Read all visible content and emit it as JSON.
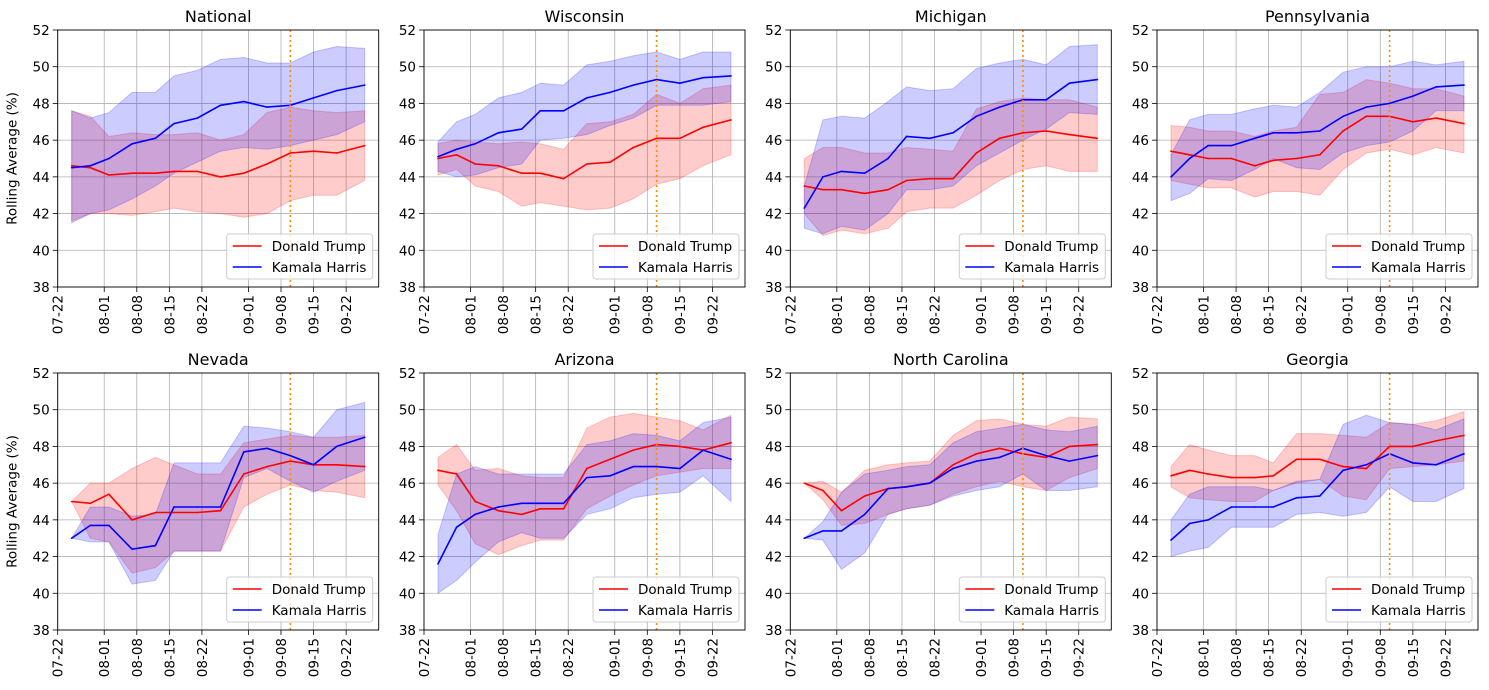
{
  "chart_data": {
    "type": "line",
    "ylabel": "Rolling Average (%)",
    "ylim": [
      38,
      52
    ],
    "yticks": [
      "38",
      "40",
      "42",
      "44",
      "46",
      "48",
      "50",
      "52"
    ],
    "xlim": [
      "07-22",
      "09-29"
    ],
    "xticks": [
      "07-22",
      "08-01",
      "08-08",
      "08-15",
      "08-22",
      "09-01",
      "09-08",
      "09-15",
      "09-22"
    ],
    "grid": true,
    "legend_placement": "lower-right",
    "band": "shaded range around each series",
    "vline": {
      "x": "09-10",
      "color": "#ff8c00",
      "style": "dotted"
    },
    "series_styles": [
      {
        "key": "trump",
        "name": "Donald Trump",
        "color": "#ff0000"
      },
      {
        "key": "harris",
        "name": "Kamala Harris",
        "color": "#0000ff"
      }
    ],
    "x": [
      "07-25",
      "07-29",
      "08-02",
      "08-07",
      "08-12",
      "08-16",
      "08-21",
      "08-26",
      "08-31",
      "09-05",
      "09-10",
      "09-15",
      "09-20",
      "09-26"
    ],
    "panels": [
      {
        "title": "National",
        "trump": {
          "mean": [
            44.6,
            44.5,
            44.1,
            44.2,
            44.2,
            44.3,
            44.3,
            44.0,
            44.2,
            44.7,
            45.3,
            45.4,
            45.3,
            45.7
          ],
          "low": [
            41.6,
            42.0,
            42.0,
            41.9,
            42.1,
            42.3,
            42.1,
            42.0,
            41.8,
            42.0,
            42.7,
            43.0,
            43.0,
            43.8
          ],
          "high": [
            47.6,
            47.3,
            46.2,
            46.4,
            46.3,
            46.3,
            46.4,
            46.0,
            46.3,
            47.5,
            47.8,
            47.6,
            47.5,
            47.6
          ]
        },
        "harris": {
          "mean": [
            44.5,
            44.6,
            45.0,
            45.8,
            46.1,
            46.9,
            47.2,
            47.9,
            48.1,
            47.8,
            47.9,
            48.3,
            48.7,
            49.0
          ],
          "low": [
            41.5,
            42.0,
            42.2,
            42.8,
            43.5,
            44.2,
            44.8,
            45.4,
            45.6,
            45.5,
            45.7,
            46.0,
            46.3,
            47.0
          ],
          "high": [
            47.6,
            47.2,
            47.5,
            48.6,
            48.6,
            49.5,
            49.8,
            50.4,
            50.5,
            50.2,
            50.2,
            50.8,
            51.1,
            51.0
          ]
        }
      },
      {
        "title": "Wisconsin",
        "trump": {
          "mean": [
            45.0,
            45.2,
            44.7,
            44.6,
            44.2,
            44.2,
            43.9,
            44.7,
            44.8,
            45.6,
            46.1,
            46.1,
            46.7,
            47.1
          ],
          "low": [
            44.1,
            44.4,
            43.5,
            43.2,
            42.4,
            42.6,
            42.4,
            42.2,
            42.3,
            42.8,
            43.6,
            43.9,
            44.6,
            45.2
          ],
          "high": [
            45.8,
            46.0,
            45.9,
            45.8,
            45.9,
            45.8,
            45.5,
            46.9,
            47.0,
            47.4,
            48.5,
            48.0,
            48.8,
            49.0
          ]
        },
        "harris": {
          "mean": [
            45.1,
            45.5,
            45.8,
            46.4,
            46.6,
            47.6,
            47.6,
            48.3,
            48.6,
            49.0,
            49.3,
            49.1,
            49.4,
            49.5
          ],
          "low": [
            44.3,
            44.0,
            44.1,
            44.5,
            44.7,
            46.0,
            46.1,
            46.3,
            46.8,
            47.2,
            47.9,
            47.9,
            47.9,
            48.1
          ],
          "high": [
            45.9,
            47.0,
            47.4,
            48.3,
            48.6,
            49.1,
            49.0,
            50.1,
            50.3,
            50.6,
            50.8,
            50.4,
            50.8,
            50.8
          ]
        }
      },
      {
        "title": "Michigan",
        "trump": {
          "mean": [
            43.5,
            43.3,
            43.3,
            43.1,
            43.3,
            43.8,
            43.9,
            43.9,
            45.3,
            46.1,
            46.4,
            46.5,
            46.3,
            46.1
          ],
          "low": [
            42.0,
            40.8,
            41.1,
            40.9,
            41.2,
            42.1,
            42.3,
            42.3,
            43.0,
            43.8,
            44.4,
            44.6,
            44.3,
            44.3
          ],
          "high": [
            45.0,
            45.6,
            45.6,
            45.3,
            45.3,
            45.6,
            45.5,
            45.4,
            47.7,
            48.1,
            48.3,
            48.2,
            48.2,
            47.8
          ]
        },
        "harris": {
          "mean": [
            42.3,
            44.0,
            44.3,
            44.2,
            45.0,
            46.2,
            46.1,
            46.4,
            47.3,
            47.8,
            48.2,
            48.2,
            49.1,
            49.3
          ],
          "low": [
            41.2,
            40.9,
            41.3,
            41.1,
            42.0,
            43.3,
            43.3,
            43.5,
            44.6,
            45.3,
            46.0,
            46.6,
            47.5,
            47.4
          ],
          "high": [
            43.5,
            47.1,
            47.3,
            47.2,
            48.1,
            48.9,
            48.7,
            48.8,
            49.9,
            50.2,
            50.4,
            50.1,
            51.1,
            51.2
          ]
        }
      },
      {
        "title": "Pennsylvania",
        "trump": {
          "mean": [
            45.4,
            45.2,
            45.0,
            45.0,
            44.6,
            44.9,
            45.0,
            45.2,
            46.5,
            47.3,
            47.3,
            47.0,
            47.2,
            46.9
          ],
          "low": [
            43.8,
            43.6,
            43.4,
            43.4,
            42.9,
            43.2,
            43.2,
            43.0,
            44.4,
            45.3,
            45.5,
            45.2,
            45.6,
            45.3
          ],
          "high": [
            46.8,
            46.7,
            46.5,
            46.5,
            46.2,
            46.5,
            46.7,
            48.5,
            48.6,
            49.3,
            49.1,
            48.8,
            48.8,
            48.4
          ]
        },
        "harris": {
          "mean": [
            44.0,
            45.0,
            45.7,
            45.7,
            46.1,
            46.4,
            46.4,
            46.5,
            47.3,
            47.8,
            48.0,
            48.4,
            48.9,
            49.0
          ],
          "low": [
            42.7,
            43.1,
            43.9,
            43.8,
            44.4,
            45.0,
            44.5,
            44.4,
            45.3,
            45.7,
            45.9,
            46.5,
            47.6,
            47.6
          ],
          "high": [
            45.2,
            47.1,
            47.4,
            47.4,
            47.7,
            47.9,
            47.8,
            48.6,
            49.7,
            50.0,
            50.0,
            50.3,
            50.1,
            50.3
          ]
        }
      },
      {
        "title": "Nevada",
        "trump": {
          "mean": [
            45.0,
            44.9,
            45.4,
            44.0,
            44.4,
            44.4,
            44.4,
            44.5,
            46.5,
            46.9,
            47.2,
            47.0,
            47.0,
            46.9
          ],
          "low": [
            45.0,
            43.0,
            42.8,
            41.1,
            41.4,
            42.3,
            42.3,
            42.3,
            44.7,
            45.4,
            45.9,
            45.6,
            45.5,
            45.2
          ],
          "high": [
            45.0,
            46.0,
            46.0,
            46.8,
            47.4,
            47.0,
            46.5,
            46.5,
            48.2,
            48.4,
            48.6,
            48.5,
            48.5,
            48.6
          ]
        },
        "harris": {
          "mean": [
            43.0,
            43.7,
            43.7,
            42.4,
            42.6,
            44.7,
            44.7,
            44.7,
            47.7,
            47.9,
            47.5,
            47.0,
            48.0,
            48.5
          ],
          "low": [
            43.0,
            42.8,
            42.8,
            40.5,
            40.7,
            42.3,
            42.3,
            42.3,
            46.3,
            46.8,
            46.1,
            45.5,
            46.1,
            46.7
          ],
          "high": [
            43.0,
            44.7,
            44.7,
            44.2,
            44.3,
            47.1,
            47.1,
            47.1,
            49.1,
            49.0,
            48.8,
            48.5,
            50.0,
            50.4
          ]
        }
      },
      {
        "title": "Arizona",
        "trump": {
          "mean": [
            46.7,
            46.5,
            45.0,
            44.5,
            44.3,
            44.6,
            44.6,
            46.8,
            47.3,
            47.8,
            48.1,
            48.0,
            47.8,
            48.2
          ],
          "low": [
            45.9,
            44.5,
            42.7,
            42.1,
            42.6,
            42.9,
            42.9,
            44.6,
            45.3,
            45.9,
            46.4,
            46.6,
            46.8,
            46.8
          ],
          "high": [
            47.4,
            48.1,
            46.7,
            46.8,
            46.4,
            46.3,
            46.3,
            49.0,
            49.6,
            49.8,
            49.6,
            49.4,
            48.9,
            49.7
          ]
        },
        "harris": {
          "mean": [
            41.6,
            43.6,
            44.3,
            44.7,
            44.9,
            44.9,
            44.9,
            46.3,
            46.4,
            46.9,
            46.9,
            46.8,
            47.8,
            47.3
          ],
          "low": [
            40.0,
            40.7,
            41.7,
            42.8,
            43.3,
            43.0,
            43.0,
            44.3,
            44.6,
            45.2,
            45.4,
            45.5,
            46.4,
            45.0
          ],
          "high": [
            43.2,
            46.5,
            46.9,
            46.5,
            46.5,
            46.5,
            46.5,
            48.1,
            48.3,
            48.7,
            48.6,
            48.3,
            49.3,
            49.6
          ]
        }
      },
      {
        "title": "North Carolina",
        "trump": {
          "mean": [
            46.0,
            45.6,
            44.5,
            45.3,
            45.7,
            45.8,
            46.0,
            47.0,
            47.6,
            47.9,
            47.6,
            47.4,
            48.0,
            48.1
          ],
          "low": [
            46.0,
            45.1,
            43.7,
            43.8,
            44.3,
            44.6,
            44.8,
            45.4,
            45.8,
            46.1,
            45.8,
            45.6,
            46.3,
            46.8
          ],
          "high": [
            46.0,
            46.1,
            45.5,
            46.7,
            47.0,
            47.1,
            47.2,
            48.6,
            49.4,
            49.5,
            49.2,
            49.1,
            49.6,
            49.5
          ]
        },
        "harris": {
          "mean": [
            43.0,
            43.4,
            43.4,
            44.3,
            45.7,
            45.8,
            46.0,
            46.8,
            47.2,
            47.4,
            47.9,
            47.5,
            47.2,
            47.5
          ],
          "low": [
            43.0,
            42.9,
            41.3,
            42.2,
            44.3,
            44.6,
            44.8,
            45.3,
            45.6,
            45.8,
            46.5,
            45.6,
            45.6,
            45.8
          ],
          "high": [
            43.0,
            43.9,
            45.5,
            46.5,
            46.7,
            46.9,
            47.0,
            48.2,
            48.8,
            49.0,
            49.2,
            48.9,
            48.8,
            49.1
          ]
        }
      },
      {
        "title": "Georgia",
        "trump": {
          "mean": [
            46.4,
            46.7,
            46.5,
            46.3,
            46.3,
            46.4,
            47.3,
            47.3,
            46.9,
            46.8,
            48.0,
            48.0,
            48.3,
            48.6
          ],
          "low": [
            45.8,
            45.2,
            45.1,
            45.0,
            45.0,
            45.6,
            46.0,
            46.2,
            45.3,
            45.1,
            46.8,
            46.9,
            47.0,
            47.2
          ],
          "high": [
            46.9,
            48.1,
            47.8,
            47.5,
            47.5,
            47.1,
            48.7,
            48.7,
            48.6,
            48.5,
            49.3,
            49.2,
            49.4,
            49.9
          ]
        },
        "harris": {
          "mean": [
            42.9,
            43.8,
            44.0,
            44.7,
            44.7,
            44.7,
            45.2,
            45.3,
            46.7,
            47.0,
            47.6,
            47.1,
            47.0,
            47.6
          ],
          "low": [
            42.0,
            42.3,
            42.5,
            43.6,
            43.6,
            43.6,
            44.3,
            44.4,
            44.2,
            44.4,
            45.8,
            45.0,
            45.0,
            45.7
          ],
          "high": [
            44.0,
            45.4,
            45.8,
            45.8,
            45.8,
            45.6,
            46.1,
            46.2,
            49.2,
            49.7,
            49.3,
            49.2,
            48.9,
            49.5
          ]
        }
      }
    ]
  }
}
